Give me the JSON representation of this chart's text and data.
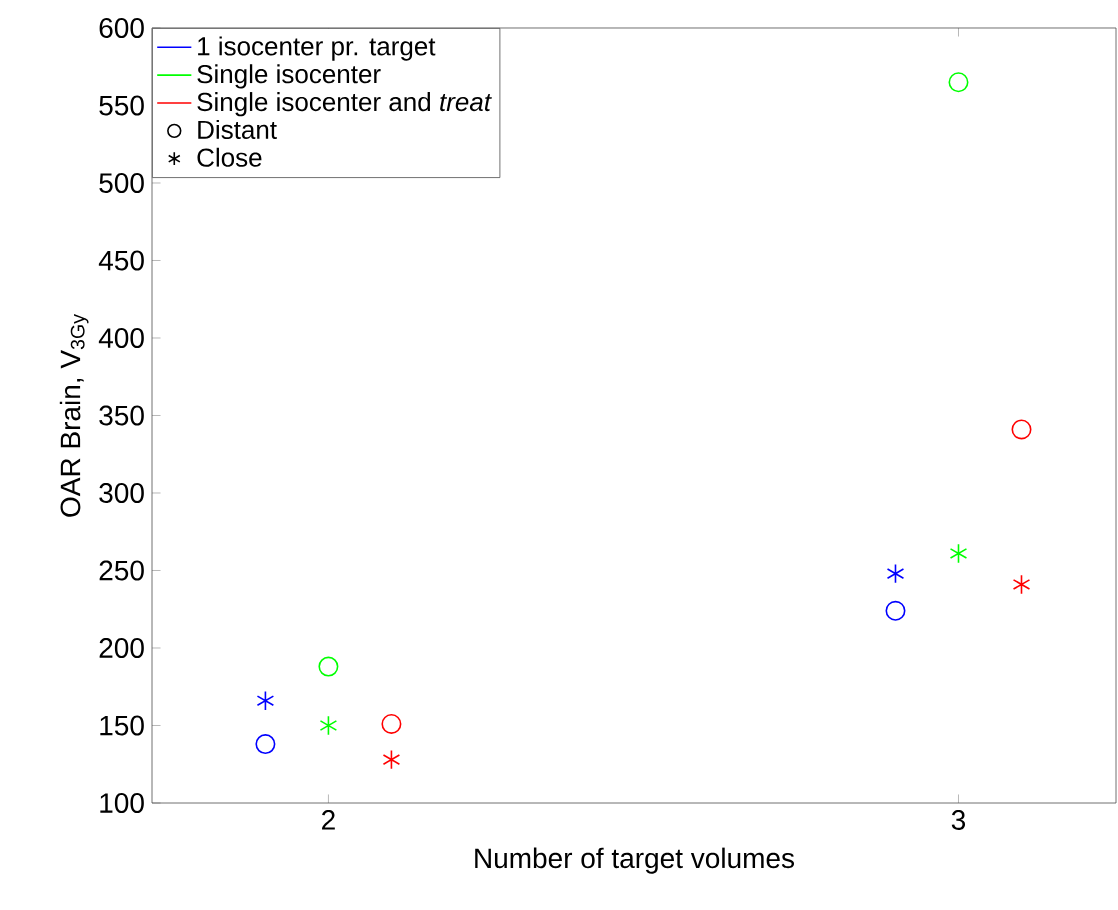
{
  "chart_data": {
    "type": "scatter",
    "xlabel": "Number of target volumes",
    "ylabel": "OAR Brain, V$_{3Gy}$",
    "xlim": [
      1.72,
      3.25
    ],
    "xticks": [
      2,
      3
    ],
    "ylim": [
      100,
      600
    ],
    "yticks": [
      100,
      150,
      200,
      250,
      300,
      350,
      400,
      450,
      500,
      550,
      600
    ],
    "grid": false,
    "legend": "top left",
    "series": [
      {
        "name": "1 isocenter pr. target",
        "type": "line",
        "color": "#0000ff",
        "marker": "none",
        "values": [
          null
        ]
      },
      {
        "name": "Single isocenter",
        "type": "line",
        "color": "#00ff00",
        "marker": "none",
        "values": [
          null
        ]
      },
      {
        "name": "Single isocenter and *treat*",
        "type": "line",
        "color": "#ff0000",
        "marker": "none",
        "values": [
          null
        ]
      },
      {
        "name": "Distant",
        "color": "#000000",
        "marker": "circle",
        "values": [
          null
        ]
      },
      {
        "name": "Close",
        "color": "#000000",
        "marker": "cross",
        "values": [
          null
        ]
      },
      {
        "color": "#0000ff",
        "marker": "circle",
        "x": [
          1.9,
          2.9
        ],
        "values": [
          138,
          224
        ]
      },
      {
        "color": "#0000ff",
        "marker": "cross",
        "x": [
          1.9,
          2.9
        ],
        "values": [
          166,
          248
        ]
      },
      {
        "color": "#00ff00",
        "marker": "circle",
        "x": [
          2,
          3
        ],
        "values": [
          188,
          565
        ]
      },
      {
        "color": "#00ff00",
        "marker": "cross",
        "x": [
          2,
          3
        ],
        "values": [
          150,
          261
        ]
      },
      {
        "color": "#ff0000",
        "marker": "circle",
        "x": [
          2.1,
          3.1
        ],
        "values": [
          151,
          341
        ]
      },
      {
        "color": "#ff0000",
        "marker": "cross",
        "x": [
          2.1,
          3.1
        ],
        "values": [
          128,
          241
        ]
      }
    ]
  }
}
